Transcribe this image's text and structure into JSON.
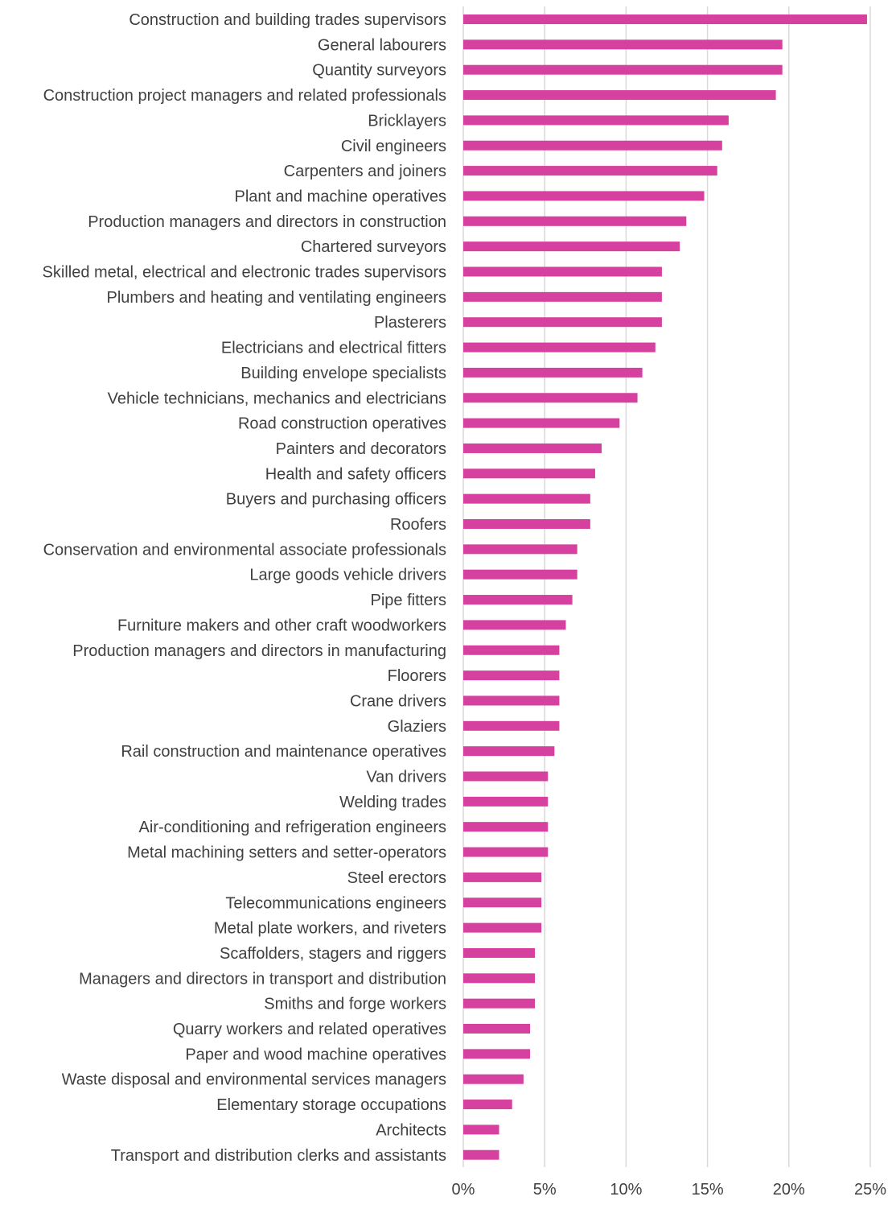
{
  "chart_data": {
    "type": "bar",
    "orientation": "horizontal",
    "title": "",
    "xlabel": "",
    "ylabel": "",
    "xlim": [
      0,
      25
    ],
    "x_ticks": [
      0,
      5,
      10,
      15,
      20,
      25
    ],
    "x_tick_labels": [
      "0%",
      "5%",
      "10%",
      "15%",
      "20%",
      "25%"
    ],
    "grid": "vertical",
    "legend": "none",
    "bar_color": "#D6409F",
    "categories": [
      "Construction and building trades supervisors",
      "General labourers",
      "Quantity surveyors",
      "Construction project managers and related professionals",
      "Bricklayers",
      "Civil engineers",
      "Carpenters and joiners",
      "Plant and machine operatives",
      "Production managers and directors in construction",
      "Chartered surveyors",
      "Skilled metal, electrical and electronic trades supervisors",
      "Plumbers and heating and ventilating engineers",
      "Plasterers",
      "Electricians and electrical fitters",
      "Building envelope specialists",
      "Vehicle technicians, mechanics and electricians",
      "Road construction operatives",
      "Painters and decorators",
      "Health and safety officers",
      "Buyers and purchasing officers",
      "Roofers",
      "Conservation and environmental associate professionals",
      "Large goods vehicle drivers",
      "Pipe fitters",
      "Furniture makers and other craft woodworkers",
      "Production managers and directors in manufacturing",
      "Floorers",
      "Crane drivers",
      "Glaziers",
      "Rail construction and maintenance operatives",
      "Van drivers",
      "Welding trades",
      "Air-conditioning and refrigeration engineers",
      "Metal machining setters and setter-operators",
      "Steel erectors",
      "Telecommunications engineers",
      "Metal plate workers, and riveters",
      "Scaffolders, stagers and riggers",
      "Managers and directors in transport and distribution",
      "Smiths and forge workers",
      "Quarry workers and related operatives",
      "Paper and wood machine operatives",
      "Waste disposal and environmental services managers",
      "Elementary storage occupations",
      "Architects",
      "Transport and distribution clerks and assistants"
    ],
    "values": [
      24.8,
      19.6,
      19.6,
      19.2,
      16.3,
      15.9,
      15.6,
      14.8,
      13.7,
      13.3,
      12.2,
      12.2,
      12.2,
      11.8,
      11.0,
      10.7,
      9.6,
      8.5,
      8.1,
      7.8,
      7.8,
      7.0,
      7.0,
      6.7,
      6.3,
      5.9,
      5.9,
      5.9,
      5.9,
      5.6,
      5.2,
      5.2,
      5.2,
      5.2,
      4.8,
      4.8,
      4.8,
      4.4,
      4.4,
      4.4,
      4.1,
      4.1,
      3.7,
      3.0,
      2.2,
      2.2
    ]
  }
}
